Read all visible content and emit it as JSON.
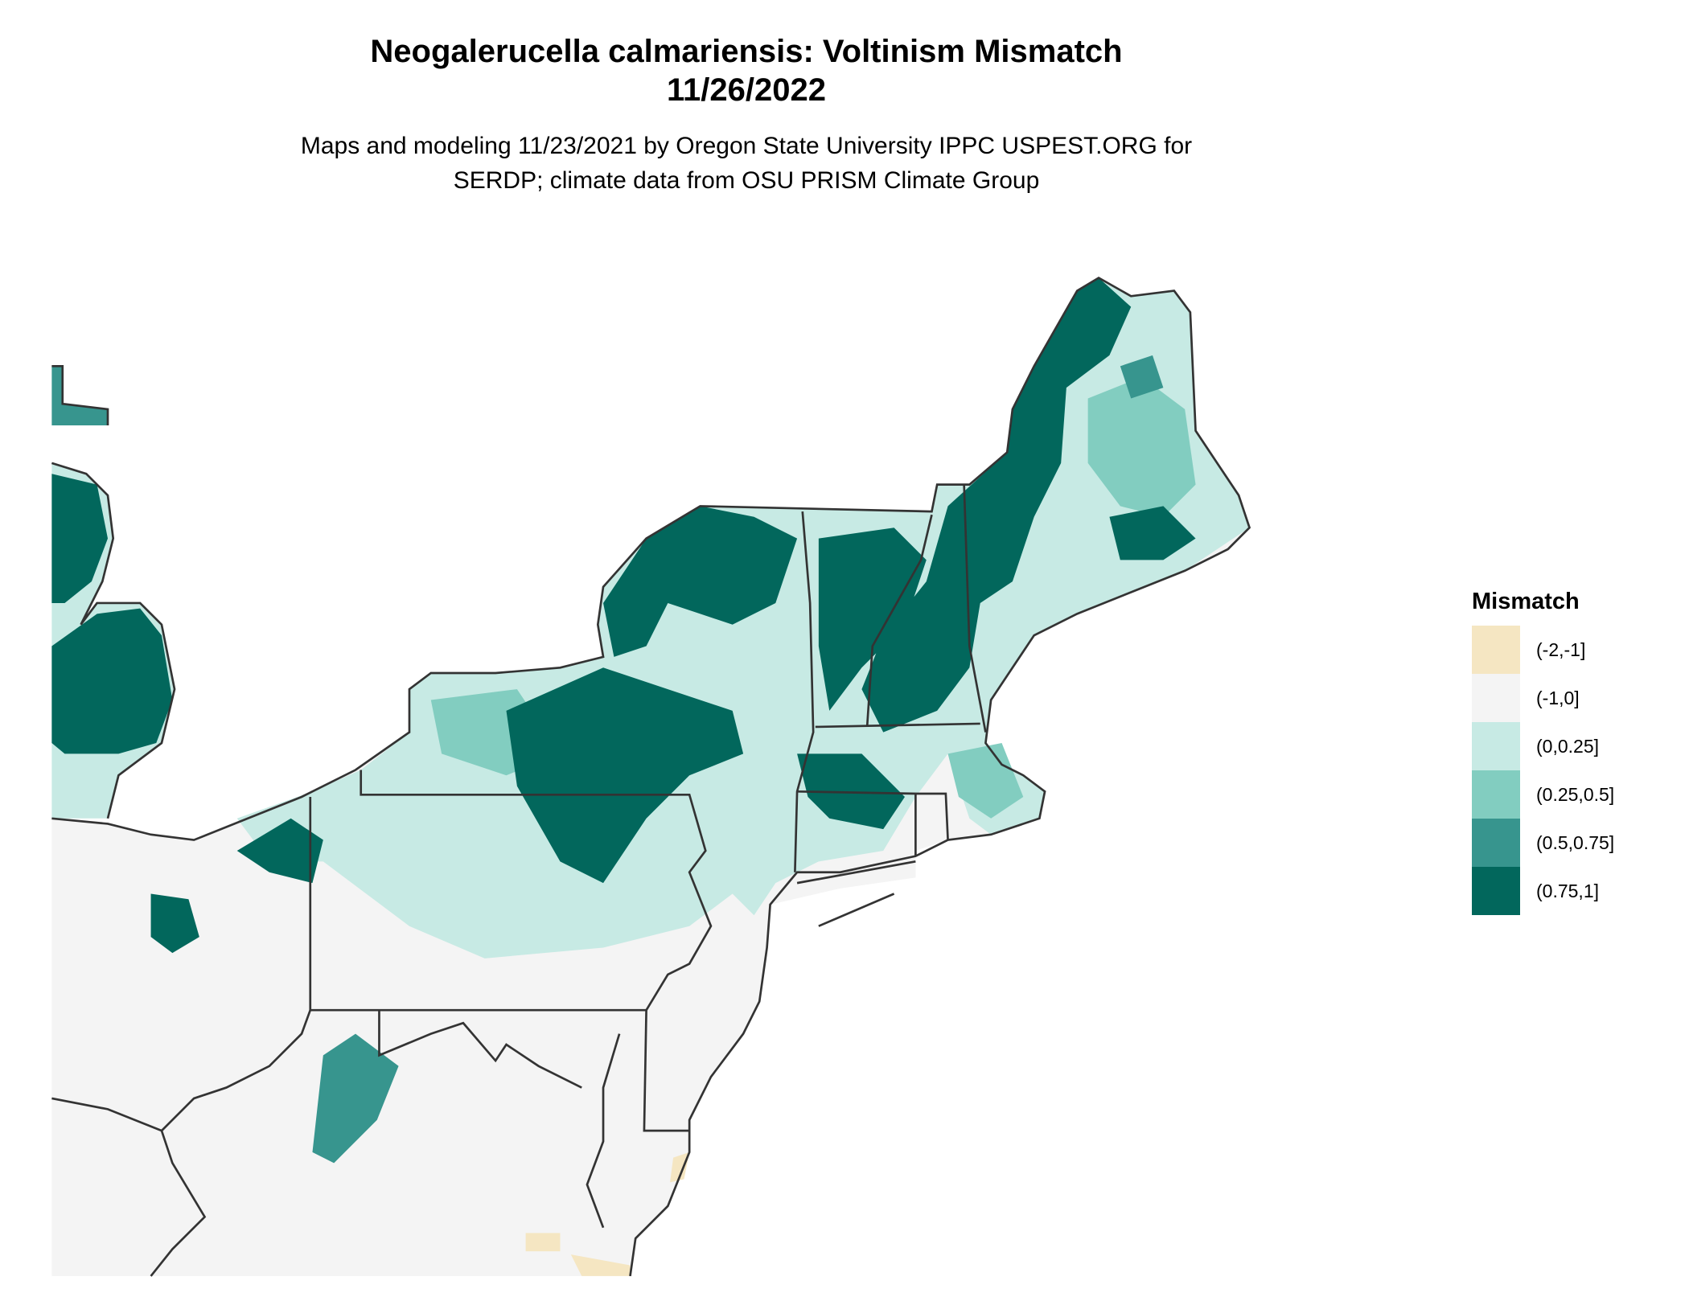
{
  "title": "Neogalerucella calmariensis: Voltinism Mismatch",
  "date": "11/26/2022",
  "subtitle_line1": "Maps and modeling 11/23/2021 by Oregon State University IPPC USPEST.ORG for",
  "subtitle_line2": "SERDP; climate data from OSU PRISM Climate Group",
  "legend": {
    "title": "Mismatch",
    "items": [
      {
        "label": "(-2,-1]",
        "color": "#f5e6c2"
      },
      {
        "label": "(-1,0]",
        "color": "#f4f4f4"
      },
      {
        "label": "(0,0.25]",
        "color": "#c7eae4"
      },
      {
        "label": "(0.25,0.5]",
        "color": "#82cdc0"
      },
      {
        "label": "(0.5,0.75]",
        "color": "#37958e"
      },
      {
        "label": "(0.75,1]",
        "color": "#02675c"
      }
    ]
  }
}
